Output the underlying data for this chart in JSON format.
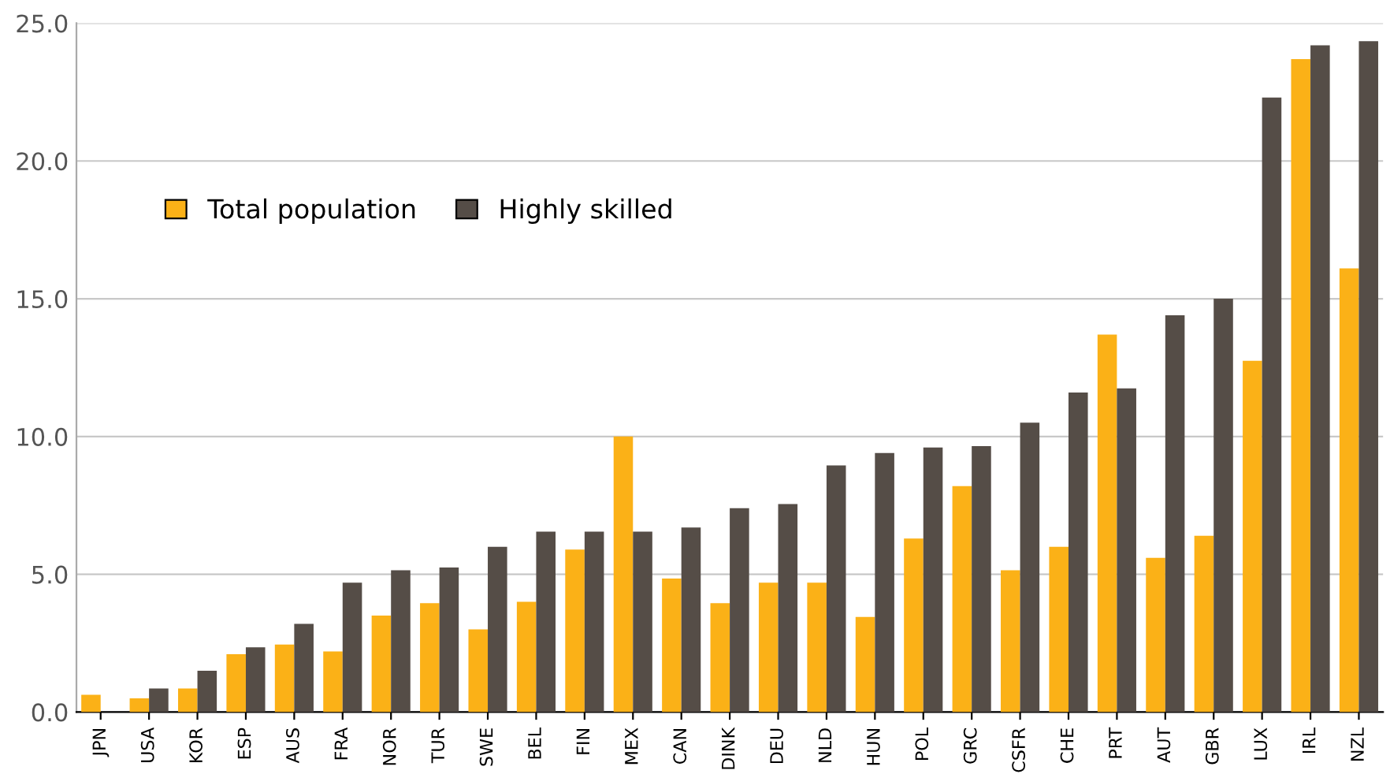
{
  "chart_data": {
    "type": "bar",
    "categories": [
      "JPN",
      "USA",
      "KOR",
      "ESP",
      "AUS",
      "FRA",
      "NOR",
      "TUR",
      "SWE",
      "BEL",
      "FIN",
      "MEX",
      "CAN",
      "DINK",
      "DEU",
      "NLD",
      "HUN",
      "POL",
      "GRC",
      "CSFR",
      "CHE",
      "PRT",
      "AUT",
      "GBR",
      "LUX",
      "IRL",
      "NZL"
    ],
    "series": [
      {
        "name": "Total population",
        "color": "#fbb117",
        "values": [
          0.63,
          0.5,
          0.86,
          2.1,
          2.45,
          2.2,
          3.5,
          3.95,
          3.0,
          4.0,
          5.9,
          10.0,
          4.85,
          3.95,
          4.7,
          4.7,
          3.45,
          6.3,
          8.2,
          5.15,
          6.0,
          13.7,
          5.6,
          6.4,
          12.75,
          23.7,
          16.1
        ]
      },
      {
        "name": "Highly skilled",
        "color": "#554d47",
        "values": [
          null,
          0.86,
          1.5,
          2.35,
          3.2,
          4.7,
          5.15,
          5.25,
          6.0,
          6.55,
          6.55,
          6.55,
          6.7,
          7.4,
          7.55,
          8.95,
          9.4,
          9.6,
          9.65,
          10.5,
          11.6,
          11.75,
          14.4,
          15.0,
          22.3,
          24.2,
          24.35
        ]
      }
    ],
    "ylim": [
      0,
      25
    ],
    "yticks": [
      {
        "value": 0,
        "label": "0.0"
      },
      {
        "value": 5,
        "label": "5.0"
      },
      {
        "value": 10,
        "label": "10.0"
      },
      {
        "value": 15,
        "label": "15.0"
      },
      {
        "value": 20,
        "label": "20.0"
      },
      {
        "value": 25,
        "label": "25.0"
      }
    ],
    "grid": "y",
    "legend": "top left"
  }
}
